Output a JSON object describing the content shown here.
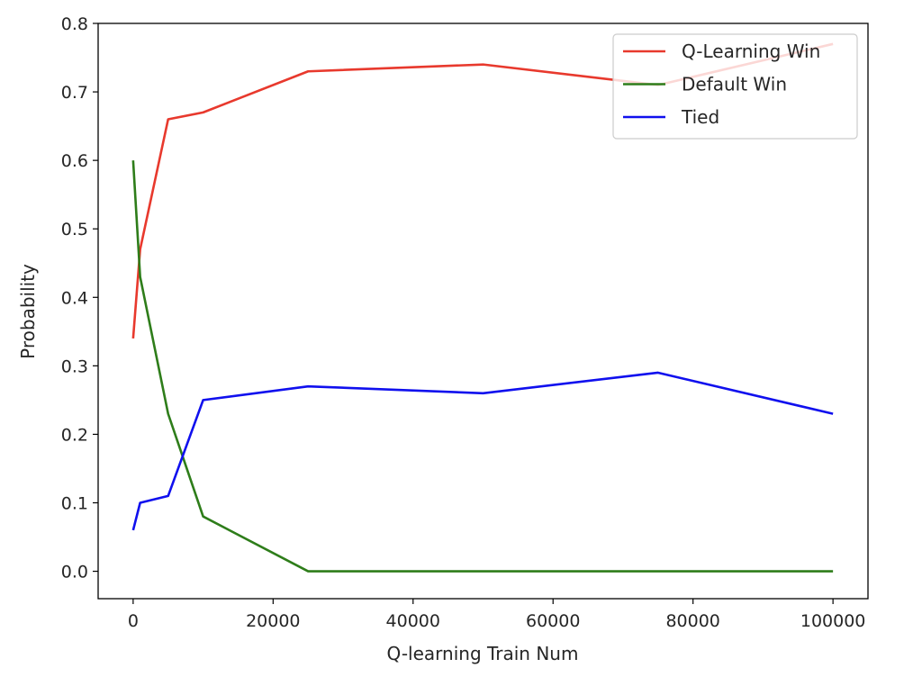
{
  "chart_data": {
    "type": "line",
    "title": "",
    "xlabel": "Q-learning Train Num",
    "ylabel": "Probability",
    "xlim": [
      -5000,
      105000
    ],
    "ylim": [
      -0.04,
      0.8
    ],
    "xticks": [
      0,
      20000,
      40000,
      60000,
      80000,
      100000
    ],
    "xtick_labels": [
      "0",
      "20000",
      "40000",
      "60000",
      "80000",
      "100000"
    ],
    "yticks": [
      0.0,
      0.1,
      0.2,
      0.3,
      0.4,
      0.5,
      0.6,
      0.7,
      0.8
    ],
    "ytick_labels": [
      "0.0",
      "0.1",
      "0.2",
      "0.3",
      "0.4",
      "0.5",
      "0.6",
      "0.7",
      "0.8"
    ],
    "x": [
      0,
      1000,
      5000,
      10000,
      25000,
      50000,
      75000,
      100000
    ],
    "grid": false,
    "legend_position": "top-right",
    "series": [
      {
        "name": "Q-Learning Win",
        "color": "#e8392d",
        "values": [
          0.34,
          0.47,
          0.66,
          0.67,
          0.73,
          0.74,
          0.71,
          0.77
        ]
      },
      {
        "name": "Default Win",
        "color": "#2e7d1a",
        "values": [
          0.6,
          0.43,
          0.23,
          0.08,
          0.0,
          0.0,
          0.0,
          0.0
        ]
      },
      {
        "name": "Tied",
        "color": "#1010ee",
        "values": [
          0.06,
          0.1,
          0.11,
          0.25,
          0.27,
          0.26,
          0.29,
          0.23
        ]
      }
    ]
  }
}
